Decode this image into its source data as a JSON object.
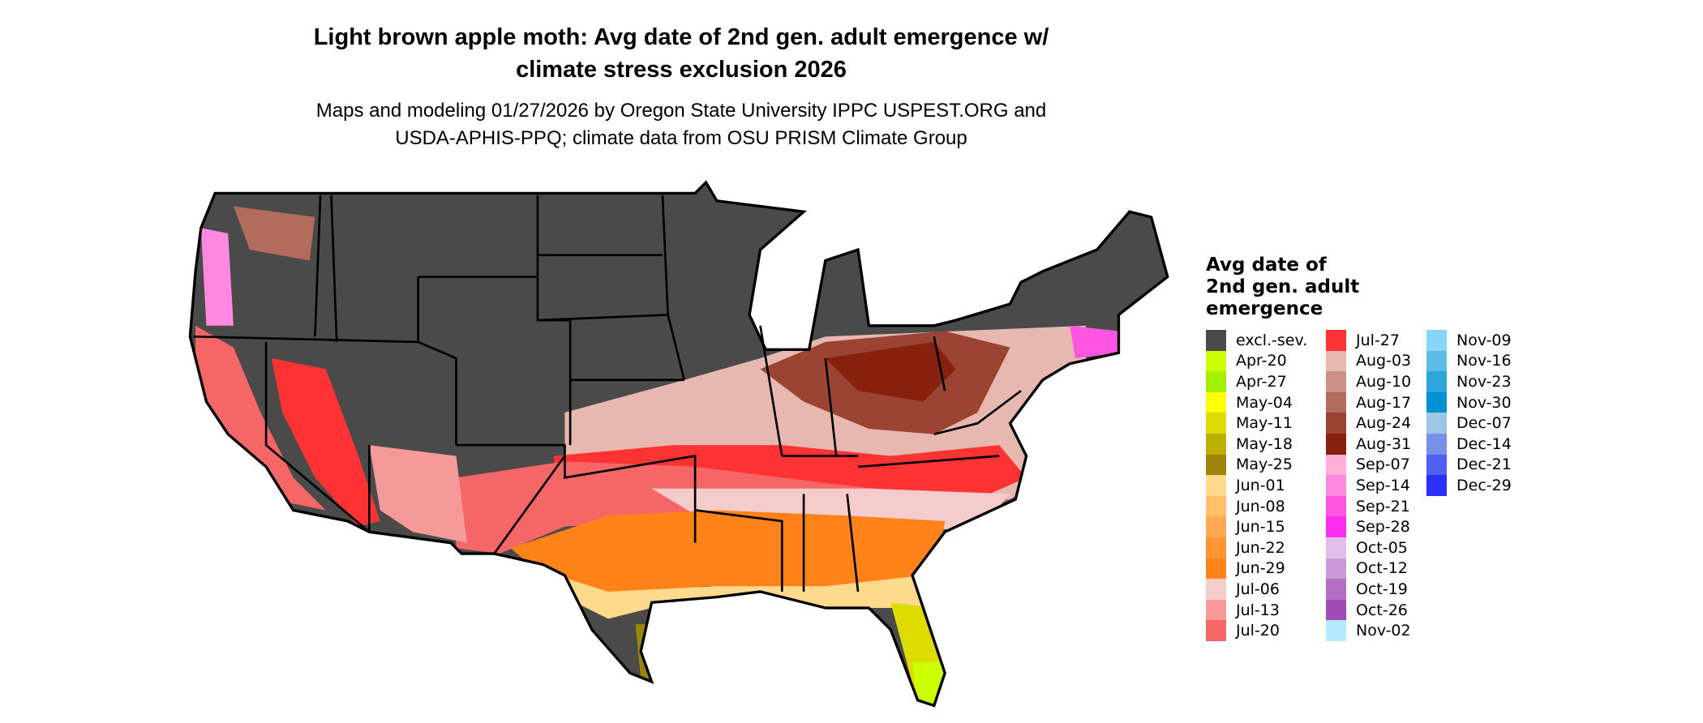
{
  "title": {
    "line1": "Light brown apple moth: Avg date of 2nd gen. adult emergence w/",
    "line2": "climate stress exclusion 2026"
  },
  "subtitle": {
    "line1": "Maps and modeling 01/27/2026 by Oregon State University IPPC USPEST.ORG and",
    "line2": "USDA-APHIS-PPQ; climate data from OSU PRISM Climate Group"
  },
  "legend": {
    "title_lines": [
      "Avg date of",
      "2nd gen. adult",
      "emergence"
    ],
    "columns": [
      [
        {
          "label": "excl.-sev.",
          "color": "#4a4a4a"
        },
        {
          "label": "Apr-20",
          "color": "#ccff00"
        },
        {
          "label": "Apr-27",
          "color": "#a3f000"
        },
        {
          "label": "May-04",
          "color": "#ffff00"
        },
        {
          "label": "May-11",
          "color": "#dedb00"
        },
        {
          "label": "May-18",
          "color": "#bcb000"
        },
        {
          "label": "May-25",
          "color": "#9c830a"
        },
        {
          "label": "Jun-01",
          "color": "#ffd98c"
        },
        {
          "label": "Jun-08",
          "color": "#ffc06a"
        },
        {
          "label": "Jun-15",
          "color": "#ffaa50"
        },
        {
          "label": "Jun-22",
          "color": "#ff9633"
        },
        {
          "label": "Jun-29",
          "color": "#ff8318"
        },
        {
          "label": "Jul-06",
          "color": "#f5cccc"
        },
        {
          "label": "Jul-13",
          "color": "#f59999"
        },
        {
          "label": "Jul-20",
          "color": "#f56666"
        }
      ],
      [
        {
          "label": "Jul-27",
          "color": "#ff3333"
        },
        {
          "label": "Aug-03",
          "color": "#e6b8b0"
        },
        {
          "label": "Aug-10",
          "color": "#cc9088"
        },
        {
          "label": "Aug-17",
          "color": "#b36b5c"
        },
        {
          "label": "Aug-24",
          "color": "#9c4433"
        },
        {
          "label": "Aug-31",
          "color": "#87200d"
        },
        {
          "label": "Sep-07",
          "color": "#ffb0d8"
        },
        {
          "label": "Sep-14",
          "color": "#ff88e0"
        },
        {
          "label": "Sep-21",
          "color": "#ff55e0"
        },
        {
          "label": "Sep-28",
          "color": "#ff2eee"
        },
        {
          "label": "Oct-05",
          "color": "#e0c0e8"
        },
        {
          "label": "Oct-12",
          "color": "#cc99d6"
        },
        {
          "label": "Oct-19",
          "color": "#b36fc4"
        },
        {
          "label": "Oct-26",
          "color": "#a04bb6"
        },
        {
          "label": "Nov-02",
          "color": "#b3ecff"
        }
      ],
      [
        {
          "label": "Nov-09",
          "color": "#88d6f5"
        },
        {
          "label": "Nov-16",
          "color": "#5bbce8"
        },
        {
          "label": "Nov-23",
          "color": "#2ea6dc"
        },
        {
          "label": "Nov-30",
          "color": "#0090d4"
        },
        {
          "label": "Dec-07",
          "color": "#a0c4e8"
        },
        {
          "label": "Dec-14",
          "color": "#7890ea"
        },
        {
          "label": "Dec-21",
          "color": "#4f5ff0"
        },
        {
          "label": "Dec-29",
          "color": "#2a30ff"
        }
      ]
    ]
  }
}
